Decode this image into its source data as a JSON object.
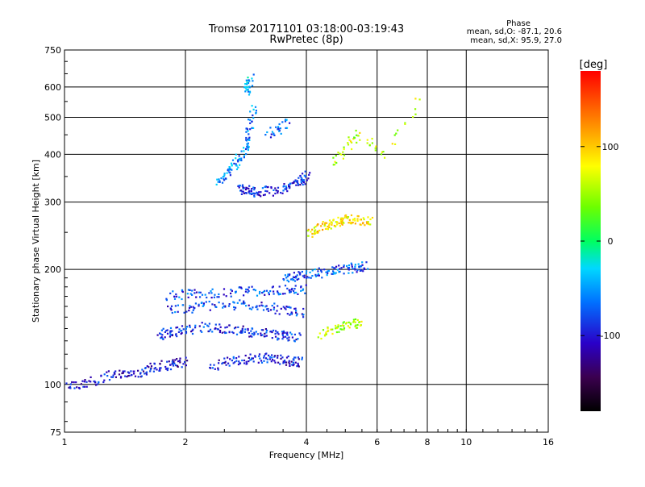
{
  "chart_data": {
    "type": "scatter",
    "title": "Tromsø 20171101 03:18:00-03:19:43",
    "subtitle": "RwPretec (8p)",
    "xlabel": "Frequency [MHz]",
    "ylabel": "Stationary phase Virtual Height [km]",
    "x_scale": "log",
    "y_scale": "log",
    "xlim": [
      1,
      16
    ],
    "ylim": [
      75,
      750
    ],
    "x_ticks": [
      1,
      2,
      4,
      6,
      8,
      10,
      16
    ],
    "x_tick_labels": [
      "1",
      "2",
      "4",
      "6",
      "8",
      "10",
      "16"
    ],
    "y_ticks": [
      75,
      100,
      200,
      300,
      400,
      500,
      600,
      750
    ],
    "y_tick_labels": [
      "75",
      "100",
      "200",
      "300",
      "400",
      "500",
      "600",
      "750"
    ],
    "grid": true,
    "phase_legend": {
      "title": "Phase",
      "line_o": "mean, sd,O: -87.1, 20.6",
      "line_x": "mean, sd,X:  95.9, 27.0"
    },
    "colorbar": {
      "label": "[deg]",
      "range": [
        -180,
        180
      ],
      "ticks": [
        100,
        0,
        -100
      ],
      "tick_labels": [
        "100",
        "0",
        "-100"
      ]
    },
    "traces": [
      {
        "x": [
          1.0,
          1.1,
          1.2,
          1.3,
          1.4,
          1.5,
          1.6,
          1.7,
          1.8,
          1.9,
          2.0
        ],
        "y": [
          100,
          101,
          103,
          106,
          107,
          108,
          110,
          112,
          113,
          114,
          115
        ],
        "phase": -100
      },
      {
        "x": [
          1.7,
          1.8,
          1.9,
          2.0,
          2.2,
          2.4,
          2.6,
          2.8,
          3.0,
          3.2,
          3.4,
          3.6,
          3.8
        ],
        "y": [
          135,
          137,
          138,
          140,
          142,
          141,
          140,
          138,
          137,
          136,
          135,
          134,
          134
        ],
        "phase": -90
      },
      {
        "x": [
          2.3,
          2.5,
          2.7,
          2.9,
          3.1,
          3.3,
          3.5,
          3.7,
          3.9
        ],
        "y": [
          112,
          115,
          116,
          117,
          118,
          117,
          116,
          115,
          115
        ],
        "phase": -95
      },
      {
        "x": [
          1.8,
          2.0,
          2.2,
          2.5,
          2.8,
          3.1,
          3.4,
          3.7,
          3.9
        ],
        "y": [
          158,
          159,
          161,
          163,
          162,
          160,
          158,
          156,
          155
        ],
        "phase": -85
      },
      {
        "x": [
          1.8,
          2.0,
          2.2,
          2.5,
          2.8,
          3.1,
          3.4,
          3.7,
          4.0
        ],
        "y": [
          172,
          173,
          174,
          175,
          176,
          176,
          177,
          178,
          178
        ],
        "phase": -80
      },
      {
        "x": [
          3.5,
          3.7,
          3.9,
          4.2,
          4.5,
          4.8,
          5.1,
          5.4,
          5.7
        ],
        "y": [
          190,
          192,
          194,
          196,
          198,
          200,
          202,
          204,
          205
        ],
        "phase": -75
      },
      {
        "x": [
          4.0,
          4.2,
          4.4,
          4.6,
          4.8,
          5.0,
          5.2,
          5.5,
          5.8
        ],
        "y": [
          250,
          255,
          260,
          265,
          270,
          272,
          272,
          270,
          268
        ],
        "phase": 85
      },
      {
        "x": [
          2.4,
          2.5,
          2.6,
          2.7,
          2.8,
          2.85,
          2.9,
          2.95
        ],
        "y": [
          340,
          355,
          370,
          390,
          410,
          440,
          480,
          540
        ],
        "phase": -60
      },
      {
        "x": [
          2.7,
          2.8,
          2.9,
          3.0,
          3.2,
          3.4,
          3.6,
          3.8,
          3.9,
          4.0
        ],
        "y": [
          330,
          325,
          322,
          320,
          322,
          325,
          330,
          338,
          345,
          355
        ],
        "phase": -90
      },
      {
        "x": [
          2.8,
          2.85,
          2.9
        ],
        "y": [
          580,
          610,
          640
        ],
        "phase": -40
      },
      {
        "x": [
          4.6,
          5.0,
          5.4,
          6.2,
          7.8
        ],
        "y": [
          380,
          420,
          460,
          400,
          580
        ],
        "phase": 60
      },
      {
        "x": [
          3.2,
          3.4,
          3.6
        ],
        "y": [
          450,
          470,
          490
        ],
        "phase": -70
      },
      {
        "x": [
          4.3,
          4.6,
          4.9,
          5.2,
          5.5
        ],
        "y": [
          135,
          140,
          143,
          145,
          145
        ],
        "phase": 60
      }
    ]
  }
}
